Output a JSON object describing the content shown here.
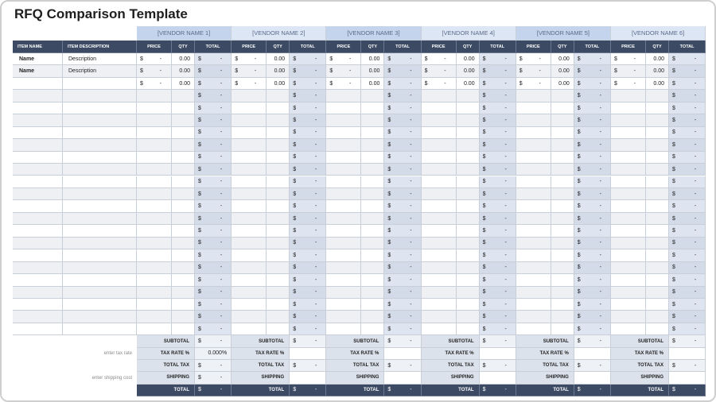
{
  "title": "RFQ Comparison Template",
  "headers": {
    "item_name": "ITEM NAME",
    "item_description": "ITEM DESCRIPTION",
    "price": "PRICE",
    "qty": "QTY",
    "total": "TOTAL"
  },
  "vendors": [
    "[VENDOR NAME 1]",
    "[VENDOR NAME 2]",
    "[VENDOR NAME 3]",
    "[VENDOR NAME 4]",
    "[VENDOR NAME 5]",
    "[VENDOR NAME 6]"
  ],
  "rows": [
    {
      "name": "Name",
      "description": "Description",
      "price": [
        "$",
        "-"
      ],
      "qty": "0.00",
      "total": [
        "$",
        "-"
      ]
    },
    {
      "name": "Name",
      "description": "Description",
      "price": [
        "$",
        "-"
      ],
      "qty": "0.00",
      "total": [
        "$",
        "-"
      ]
    },
    {
      "price": [
        "$",
        "-"
      ],
      "qty": "0.00",
      "total": [
        "$",
        "-"
      ]
    },
    {
      "total": [
        "$",
        "-"
      ]
    },
    {
      "total": [
        "$",
        "-"
      ]
    },
    {
      "total": [
        "$",
        "-"
      ]
    },
    {
      "total": [
        "$",
        "-"
      ]
    },
    {
      "total": [
        "$",
        "-"
      ]
    },
    {
      "total": [
        "$",
        "-"
      ]
    },
    {
      "total": [
        "$",
        "-"
      ]
    },
    {
      "total": [
        "$",
        "-"
      ]
    },
    {
      "total": [
        "$",
        "-"
      ]
    },
    {
      "total": [
        "$",
        "-"
      ]
    },
    {
      "total": [
        "$",
        "-"
      ]
    },
    {
      "total": [
        "$",
        "-"
      ]
    },
    {
      "total": [
        "$",
        "-"
      ]
    },
    {
      "total": [
        "$",
        "-"
      ]
    },
    {
      "total": [
        "$",
        "-"
      ]
    },
    {
      "total": [
        "$",
        "-"
      ]
    },
    {
      "total": [
        "$",
        "-"
      ]
    },
    {
      "total": [
        "$",
        "-"
      ]
    },
    {
      "total": [
        "$",
        "-"
      ]
    },
    {
      "total": [
        "$",
        "-"
      ]
    }
  ],
  "summary": [
    {
      "label": "SUBTOTAL",
      "values": [
        [
          "$",
          "-"
        ],
        [
          "$",
          "-"
        ],
        [
          "$",
          "-"
        ],
        [
          "$",
          "-"
        ],
        [
          "$",
          "-"
        ],
        [
          "$",
          "-"
        ]
      ]
    },
    {
      "note": "enter tax rate",
      "label": "TAX RATE %",
      "values": [
        "0.000%",
        null,
        null,
        null,
        null,
        null
      ]
    },
    {
      "label": "TOTAL TAX",
      "values": [
        [
          "$",
          "-"
        ],
        [
          "$",
          "-"
        ],
        [
          "$",
          "-"
        ],
        [
          "$",
          "-"
        ],
        [
          "$",
          "-"
        ],
        [
          "$",
          "-"
        ]
      ]
    },
    {
      "note": "enter shipping cost",
      "label": "SHIPPING",
      "values": [
        [
          "$",
          "-"
        ],
        null,
        null,
        null,
        null,
        null
      ]
    },
    {
      "label": "TOTAL",
      "values": [
        [
          "$",
          "-"
        ],
        [
          "$",
          "-"
        ],
        [
          "$",
          "-"
        ],
        [
          "$",
          "-"
        ],
        [
          "$",
          "-"
        ],
        [
          "$",
          "-"
        ]
      ]
    }
  ]
}
